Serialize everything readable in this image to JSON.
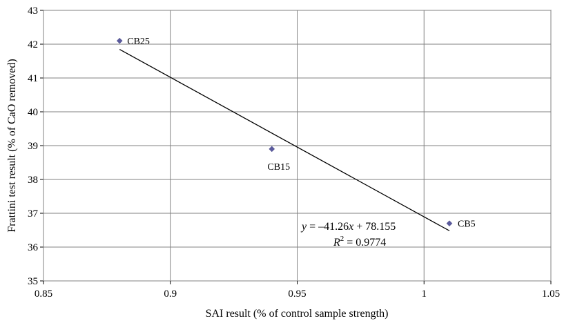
{
  "chart_data": {
    "type": "scatter",
    "title": "",
    "xlabel": "SAI result (% of control sample strength)",
    "ylabel": "Frattini test result (% of CaO removed)",
    "xlim": [
      0.85,
      1.05
    ],
    "ylim": [
      35,
      43
    ],
    "x_ticks": [
      "0.85",
      "0.9",
      "0.95",
      "1",
      "1.05"
    ],
    "y_ticks": [
      "35",
      "36",
      "37",
      "38",
      "39",
      "40",
      "41",
      "42",
      "43"
    ],
    "grid": true,
    "point_color": "#5b5b9e",
    "points": [
      {
        "label": "CB25",
        "x": 0.88,
        "y": 42.1
      },
      {
        "label": "CB15",
        "x": 0.94,
        "y": 38.9
      },
      {
        "label": "CB5",
        "x": 1.01,
        "y": 36.7
      }
    ],
    "trendline": {
      "slope": -41.26,
      "intercept": 78.155,
      "x_range": [
        0.88,
        1.01
      ],
      "equation": {
        "y": "y",
        "eq": " = ",
        "coef": "–41.26",
        "x": "x",
        "rest": " + 78.155"
      },
      "r2": {
        "r": "R",
        "sup": "2",
        "rest": " = 0.9774"
      }
    }
  }
}
